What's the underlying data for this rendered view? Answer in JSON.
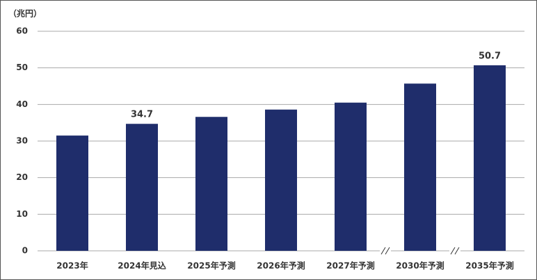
{
  "chart_data": {
    "type": "bar",
    "unit_label": "（兆円）",
    "categories": [
      "2023年",
      "2024年見込",
      "2025年予測",
      "2026年予測",
      "2027年予測",
      "2030年予測",
      "2035年予測"
    ],
    "values": [
      31.5,
      34.7,
      36.6,
      38.6,
      40.5,
      45.7,
      50.7
    ],
    "value_labels": [
      null,
      "34.7",
      null,
      null,
      null,
      null,
      "50.7"
    ],
    "color": "#1f2d6b",
    "ylim": [
      0,
      60
    ],
    "yticks": [
      0,
      10,
      20,
      30,
      40,
      50,
      60
    ],
    "grid": true
  }
}
